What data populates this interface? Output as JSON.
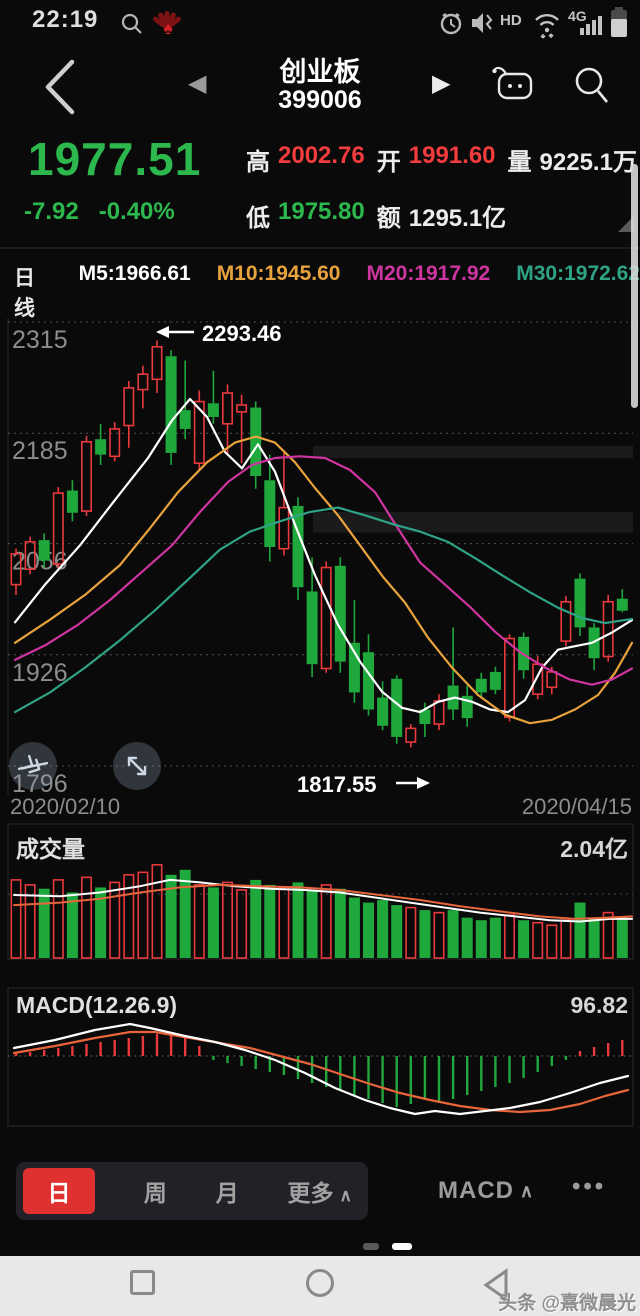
{
  "status_bar": {
    "time": "22:19",
    "hd": "HD",
    "network": "4G"
  },
  "header": {
    "title": "创业板",
    "code": "399006"
  },
  "quote": {
    "last": "1977.51",
    "change": "-7.92",
    "change_pct": "-0.40%",
    "high_label": "高",
    "high": "2002.76",
    "open_label": "开",
    "open": "1991.60",
    "vol_label": "量",
    "vol": "9225.1万",
    "low_label": "低",
    "low": "1975.80",
    "amt_label": "额",
    "amt": "1295.1亿"
  },
  "ma_row": {
    "period": "日线",
    "m5": "M5:1966.61",
    "m10": "M10:1945.60",
    "m20": "M20:1917.92",
    "m30": "M30:1972.62"
  },
  "date_axis": {
    "start": "2020/02/10",
    "end": "2020/04/15"
  },
  "volume_panel": {
    "label": "成交量",
    "value": "2.04亿"
  },
  "macd_panel": {
    "label": "MACD(12.26.9)",
    "value": "96.82"
  },
  "tabs": {
    "day": "日",
    "week": "周",
    "month": "月",
    "more": "更多",
    "more_chevron": "∧",
    "indicator": "MACD",
    "indicator_chevron": "∧",
    "dots": "•••"
  },
  "watermark": "头条 @熹微晨光",
  "colors": {
    "up": "#e8393c",
    "down": "#1fa83c",
    "ma5": "#ffffff",
    "ma10": "#e8a33d",
    "ma20": "#cf35a0",
    "ma30": "#2fa386",
    "dea": "#e8653c",
    "price_up": "#f23c3e",
    "price_down": "#2db84d",
    "accent": "#e03131"
  },
  "chart_data": [
    {
      "type": "candlestick",
      "panel": "main",
      "period": "日线",
      "x_start": "2020/02/10",
      "x_end": "2020/04/15",
      "ylim": [
        1762,
        2320
      ],
      "y_ticks": [
        2315,
        2185,
        2056,
        1926,
        1796
      ],
      "annotations": [
        {
          "text": "2293.46",
          "side": "left",
          "price": 2293.46
        },
        {
          "text": "1817.55",
          "side": "right",
          "price": 1817.55
        }
      ],
      "highlight_bands": [
        {
          "from_x": 313,
          "top": 2170,
          "bottom": 2156
        },
        {
          "from_x": 313,
          "top": 2093,
          "bottom": 2069
        }
      ],
      "candles": [
        [
          2008,
          2050,
          1996,
          2044
        ],
        [
          2026,
          2064,
          2020,
          2058
        ],
        [
          2060,
          2068,
          2028,
          2036
        ],
        [
          2032,
          2122,
          2026,
          2115
        ],
        [
          2118,
          2130,
          2082,
          2092
        ],
        [
          2094,
          2182,
          2088,
          2175
        ],
        [
          2178,
          2196,
          2148,
          2160
        ],
        [
          2158,
          2198,
          2152,
          2190
        ],
        [
          2194,
          2246,
          2168,
          2238
        ],
        [
          2236,
          2264,
          2214,
          2254
        ],
        [
          2248,
          2293.46,
          2232,
          2286
        ],
        [
          2275,
          2282,
          2148,
          2162
        ],
        [
          2212,
          2270,
          2178,
          2190
        ],
        [
          2150,
          2235,
          2142,
          2222
        ],
        [
          2220,
          2258,
          2196,
          2204
        ],
        [
          2196,
          2242,
          2160,
          2232
        ],
        [
          2210,
          2230,
          2150,
          2218
        ],
        [
          2215,
          2222,
          2120,
          2135
        ],
        [
          2130,
          2160,
          2035,
          2052
        ],
        [
          2050,
          2162,
          2042,
          2098
        ],
        [
          2100,
          2110,
          1990,
          2005
        ],
        [
          2000,
          2040,
          1900,
          1915
        ],
        [
          1910,
          2035,
          1905,
          2028
        ],
        [
          2030,
          2040,
          1905,
          1918
        ],
        [
          1940,
          1990,
          1870,
          1882
        ],
        [
          1929,
          1950,
          1855,
          1862
        ],
        [
          1876,
          1895,
          1838,
          1843
        ],
        [
          1898,
          1902,
          1822,
          1830
        ],
        [
          1824,
          1845,
          1817.55,
          1840
        ],
        [
          1862,
          1870,
          1830,
          1845
        ],
        [
          1845,
          1880,
          1838,
          1872
        ],
        [
          1890,
          1958,
          1850,
          1862
        ],
        [
          1878,
          1890,
          1842,
          1852
        ],
        [
          1898,
          1905,
          1875,
          1882
        ],
        [
          1906,
          1912,
          1880,
          1885
        ],
        [
          1853,
          1950,
          1848,
          1945
        ],
        [
          1947,
          1952,
          1898,
          1908
        ],
        [
          1880,
          1925,
          1874,
          1915
        ],
        [
          1888,
          1912,
          1880,
          1906
        ],
        [
          1942,
          1995,
          1936,
          1988
        ],
        [
          2015,
          2021,
          1948,
          1958
        ],
        [
          1958,
          1963,
          1908,
          1922
        ],
        [
          1924,
          1996,
          1918,
          1988
        ],
        [
          1991.6,
          2002.76,
          1975.8,
          1977.51
        ]
      ],
      "ma_lines": [
        {
          "name": "MA5",
          "color_key": "ma5",
          "points": [
            [
              15,
              1964
            ],
            [
              45,
              2008
            ],
            [
              80,
              2054
            ],
            [
              115,
              2107
            ],
            [
              148,
              2156
            ],
            [
              172,
              2200
            ],
            [
              190,
              2225
            ],
            [
              207,
              2204
            ],
            [
              225,
              2163
            ],
            [
              242,
              2144
            ],
            [
              258,
              2172
            ],
            [
              275,
              2140
            ],
            [
              295,
              2078
            ],
            [
              315,
              2019
            ],
            [
              338,
              1961
            ],
            [
              360,
              1918
            ],
            [
              382,
              1883
            ],
            [
              402,
              1864
            ],
            [
              420,
              1859
            ],
            [
              438,
              1871
            ],
            [
              455,
              1876
            ],
            [
              472,
              1871
            ],
            [
              490,
              1862
            ],
            [
              508,
              1859
            ],
            [
              525,
              1873
            ],
            [
              542,
              1911
            ],
            [
              558,
              1932
            ],
            [
              575,
              1936
            ],
            [
              592,
              1940
            ],
            [
              612,
              1952
            ],
            [
              632,
              1966.6
            ]
          ]
        },
        {
          "name": "MA10",
          "color_key": "ma10",
          "points": [
            [
              15,
              1940
            ],
            [
              50,
              1967
            ],
            [
              85,
              1996
            ],
            [
              120,
              2031
            ],
            [
              150,
              2074
            ],
            [
              178,
              2116
            ],
            [
              207,
              2151
            ],
            [
              235,
              2174
            ],
            [
              256,
              2181
            ],
            [
              275,
              2174
            ],
            [
              295,
              2151
            ],
            [
              315,
              2121
            ],
            [
              338,
              2089
            ],
            [
              360,
              2054
            ],
            [
              383,
              2017
            ],
            [
              405,
              1987
            ],
            [
              428,
              1946
            ],
            [
              452,
              1911
            ],
            [
              478,
              1879
            ],
            [
              505,
              1856
            ],
            [
              530,
              1846
            ],
            [
              552,
              1850
            ],
            [
              575,
              1862
            ],
            [
              598,
              1879
            ],
            [
              615,
              1905
            ],
            [
              632,
              1940
            ]
          ]
        },
        {
          "name": "MA20",
          "color_key": "ma20",
          "points": [
            [
              15,
              1920
            ],
            [
              45,
              1937
            ],
            [
              78,
              1961
            ],
            [
              110,
              1990
            ],
            [
              142,
              2023
            ],
            [
              172,
              2054
            ],
            [
              200,
              2093
            ],
            [
              228,
              2128
            ],
            [
              252,
              2148
            ],
            [
              275,
              2156
            ],
            [
              300,
              2158
            ],
            [
              325,
              2156
            ],
            [
              350,
              2142
            ],
            [
              375,
              2116
            ],
            [
              400,
              2070
            ],
            [
              420,
              2034
            ],
            [
              445,
              2008
            ],
            [
              470,
              1982
            ],
            [
              495,
              1953
            ],
            [
              520,
              1929
            ],
            [
              545,
              1911
            ],
            [
              570,
              1897
            ],
            [
              592,
              1891
            ],
            [
              612,
              1897
            ],
            [
              632,
              1910
            ]
          ]
        },
        {
          "name": "MA30",
          "color_key": "ma30",
          "points": [
            [
              15,
              1859
            ],
            [
              50,
              1882
            ],
            [
              85,
              1911
            ],
            [
              120,
              1943
            ],
            [
              155,
              1978
            ],
            [
              190,
              2016
            ],
            [
              220,
              2049
            ],
            [
              250,
              2070
            ],
            [
              280,
              2082
            ],
            [
              310,
              2093
            ],
            [
              338,
              2098
            ],
            [
              365,
              2089
            ],
            [
              395,
              2078
            ],
            [
              420,
              2070
            ],
            [
              448,
              2058
            ],
            [
              475,
              2039
            ],
            [
              502,
              2019
            ],
            [
              530,
              1999
            ],
            [
              558,
              1981
            ],
            [
              582,
              1969
            ],
            [
              605,
              1963
            ],
            [
              632,
              1968
            ]
          ]
        }
      ]
    },
    {
      "type": "bar",
      "panel": "volume",
      "title": "成交量",
      "current": "2.04亿",
      "values": [
        0.62,
        0.58,
        0.55,
        0.62,
        0.52,
        0.64,
        0.56,
        0.6,
        0.66,
        0.68,
        0.74,
        0.66,
        0.7,
        0.58,
        0.56,
        0.6,
        0.54,
        0.62,
        0.58,
        0.56,
        0.6,
        0.54,
        0.58,
        0.55,
        0.48,
        0.44,
        0.46,
        0.42,
        0.4,
        0.38,
        0.36,
        0.38,
        0.32,
        0.3,
        0.32,
        0.34,
        0.3,
        0.28,
        0.26,
        0.3,
        0.44,
        0.32,
        0.36,
        0.33
      ],
      "ma": [
        {
          "color_key": "ma5",
          "points": [
            [
              14,
              0.5
            ],
            [
              60,
              0.49
            ],
            [
              100,
              0.52
            ],
            [
              140,
              0.57
            ],
            [
              170,
              0.62
            ],
            [
              200,
              0.6
            ],
            [
              235,
              0.57
            ],
            [
              270,
              0.55
            ],
            [
              305,
              0.54
            ],
            [
              340,
              0.52
            ],
            [
              375,
              0.48
            ],
            [
              410,
              0.44
            ],
            [
              445,
              0.4
            ],
            [
              480,
              0.36
            ],
            [
              515,
              0.33
            ],
            [
              550,
              0.3
            ],
            [
              580,
              0.29
            ],
            [
              610,
              0.31
            ],
            [
              632,
              0.31
            ]
          ]
        },
        {
          "color_key": "dea",
          "points": [
            [
              14,
              0.42
            ],
            [
              60,
              0.44
            ],
            [
              100,
              0.47
            ],
            [
              140,
              0.52
            ],
            [
              180,
              0.56
            ],
            [
              220,
              0.58
            ],
            [
              260,
              0.57
            ],
            [
              300,
              0.56
            ],
            [
              340,
              0.54
            ],
            [
              380,
              0.5
            ],
            [
              420,
              0.46
            ],
            [
              460,
              0.41
            ],
            [
              500,
              0.37
            ],
            [
              540,
              0.33
            ],
            [
              575,
              0.31
            ],
            [
              605,
              0.32
            ],
            [
              632,
              0.33
            ]
          ]
        }
      ]
    },
    {
      "type": "macd",
      "panel": "macd",
      "title": "MACD(12.26.9)",
      "current": "96.82",
      "hist": [
        3,
        4,
        6,
        8,
        10,
        12,
        14,
        16,
        18,
        20,
        22,
        24,
        20,
        10,
        -4,
        -7,
        -10,
        -13,
        -16,
        -19,
        -23,
        -27,
        -31,
        -35,
        -39,
        -43,
        -47,
        -51,
        -48,
        -44,
        -47,
        -43,
        -39,
        -35,
        -31,
        -27,
        -22,
        -16,
        -10,
        -4,
        5,
        9,
        13,
        16
      ],
      "dif": [
        [
          14,
          8
        ],
        [
          55,
          16
        ],
        [
          95,
          26
        ],
        [
          130,
          32
        ],
        [
          150,
          28
        ],
        [
          185,
          20
        ],
        [
          215,
          14
        ],
        [
          245,
          6
        ],
        [
          275,
          -4
        ],
        [
          305,
          -17
        ],
        [
          335,
          -32
        ],
        [
          365,
          -44
        ],
        [
          390,
          -52
        ],
        [
          415,
          -58
        ],
        [
          435,
          -55
        ],
        [
          460,
          -58
        ],
        [
          485,
          -55
        ],
        [
          510,
          -52
        ],
        [
          540,
          -46
        ],
        [
          570,
          -37
        ],
        [
          600,
          -27
        ],
        [
          628,
          -20
        ]
      ],
      "dea": [
        [
          14,
          3
        ],
        [
          55,
          10
        ],
        [
          95,
          18
        ],
        [
          130,
          24
        ],
        [
          155,
          24
        ],
        [
          190,
          18
        ],
        [
          220,
          13
        ],
        [
          250,
          8
        ],
        [
          280,
          0
        ],
        [
          310,
          -8
        ],
        [
          340,
          -18
        ],
        [
          370,
          -28
        ],
        [
          400,
          -37
        ],
        [
          430,
          -44
        ],
        [
          460,
          -50
        ],
        [
          490,
          -54
        ],
        [
          520,
          -56
        ],
        [
          550,
          -54
        ],
        [
          580,
          -48
        ],
        [
          605,
          -40
        ],
        [
          628,
          -34
        ]
      ]
    }
  ]
}
